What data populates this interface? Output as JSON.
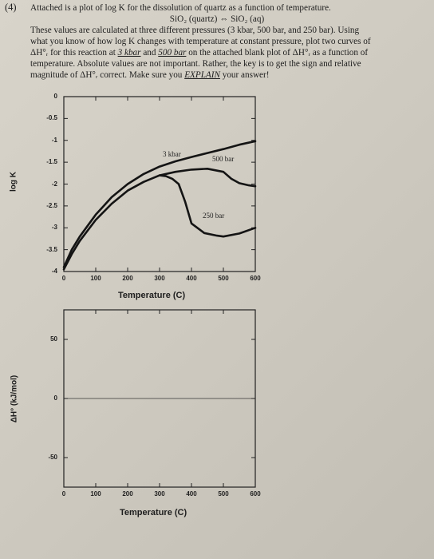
{
  "question": {
    "number": "(4)",
    "line1": "Attached is a plot of log K for the dissolution of quartz as a function of temperature.",
    "reaction": "SiO₂ (quartz) ⇔ SiO₂ (aq)",
    "line2": "These values are calculated at three different pressures (3 kbar, 500 bar, and 250 bar).  Using",
    "line3": "what you know of how log K changes with temperature at constant pressure, plot two curves of",
    "line4_a": "ΔH°ᵣ for this reaction at ",
    "line4_u1": "3 kbar",
    "line4_b": " and ",
    "line4_u2": "500 bar",
    "line4_c": " on the attached blank plot of ΔH°ᵣ as a function of",
    "line5": "temperature.  Absolute values are not important.  Rather, the key is to get the sign and relative",
    "line6_a": "magnitude of ΔH°ᵣ correct.  Make sure you ",
    "line6_u": "EXPLAIN",
    "line6_b": " your answer!"
  },
  "chart_data": [
    {
      "type": "line",
      "xlabel": "Temperature (C)",
      "ylabel": "log K",
      "xlim": [
        0,
        600
      ],
      "ylim": [
        -4,
        0
      ],
      "xticks": [
        "0",
        "100",
        "200",
        "300",
        "400",
        "500",
        "600"
      ],
      "yticks": [
        "0",
        "-0.5",
        "-1",
        "-1.5",
        "-2",
        "-2.5",
        "-3",
        "-3.5",
        "-4"
      ],
      "series": [
        {
          "name": "3 kbar",
          "x": [
            0,
            25,
            50,
            100,
            150,
            200,
            250,
            300,
            350,
            400,
            450,
            500,
            550,
            600
          ],
          "y": [
            -3.9,
            -3.5,
            -3.2,
            -2.7,
            -2.3,
            -2.0,
            -1.77,
            -1.6,
            -1.48,
            -1.38,
            -1.29,
            -1.2,
            -1.1,
            -1.02
          ]
        },
        {
          "name": "500 bar",
          "x": [
            0,
            25,
            50,
            100,
            150,
            200,
            250,
            300,
            350,
            400,
            450,
            500,
            525,
            550,
            580,
            600
          ],
          "y": [
            -3.95,
            -3.6,
            -3.3,
            -2.82,
            -2.45,
            -2.15,
            -1.95,
            -1.8,
            -1.72,
            -1.67,
            -1.65,
            -1.72,
            -1.88,
            -1.98,
            -2.03,
            -2.05
          ]
        },
        {
          "name": "250 bar",
          "x": [
            300,
            320,
            340,
            360,
            380,
            400,
            440,
            480,
            500,
            550,
            600
          ],
          "y": [
            -1.8,
            -1.82,
            -1.88,
            -2.0,
            -2.4,
            -2.9,
            -3.12,
            -3.18,
            -3.2,
            -3.13,
            -3.0
          ]
        }
      ]
    },
    {
      "type": "line",
      "xlabel": "Temperature (C)",
      "ylabel": "ΔH° (kJ/mol)",
      "xlim": [
        0,
        600
      ],
      "ylim": [
        -75,
        75
      ],
      "xticks": [
        "0",
        "100",
        "200",
        "300",
        "400",
        "500",
        "600"
      ],
      "yticks": [
        "50",
        "0",
        "-50"
      ],
      "series": []
    }
  ]
}
